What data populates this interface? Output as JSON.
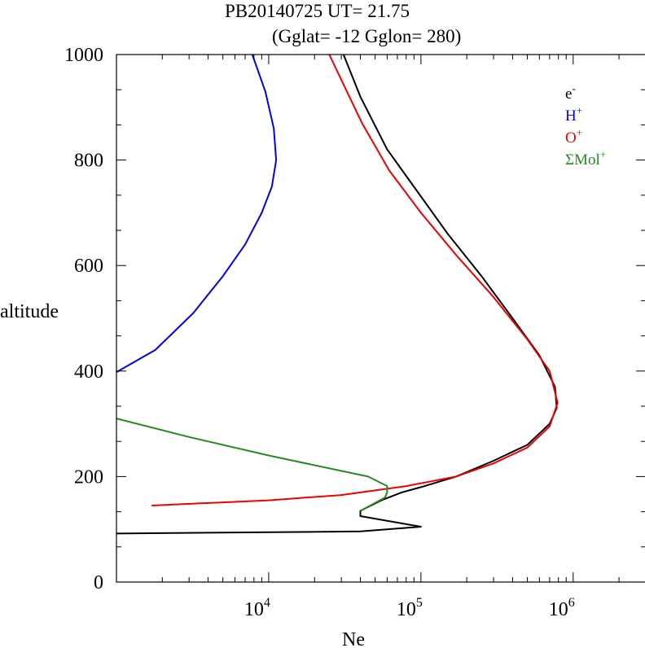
{
  "chart_data": {
    "type": "line",
    "title": "PB20140725   UT=  21.75",
    "subtitle": "(Gglat= -12   Gglon=  280)",
    "xlabel": "Ne",
    "ylabel": "altitude",
    "xscale": "log",
    "xlim": [
      1000,
      3000000
    ],
    "ylim": [
      0,
      1000
    ],
    "xticks": [
      {
        "value": 10000,
        "base": "10",
        "exp": "4"
      },
      {
        "value": 100000,
        "base": "10",
        "exp": "5"
      },
      {
        "value": 1000000,
        "base": "10",
        "exp": "6"
      }
    ],
    "yticks": [
      "0",
      "200",
      "400",
      "600",
      "800",
      "1000"
    ],
    "grid": false,
    "legend_position": "top-right",
    "series": [
      {
        "name": "e",
        "sup": "-",
        "color": "#000000",
        "points": [
          [
            1000,
            92
          ],
          [
            40000,
            96
          ],
          [
            100000,
            105
          ],
          [
            40000,
            125
          ],
          [
            40000,
            135
          ],
          [
            55000,
            155
          ],
          [
            75000,
            170
          ],
          [
            100000,
            180
          ],
          [
            170000,
            200
          ],
          [
            300000,
            230
          ],
          [
            500000,
            260
          ],
          [
            700000,
            300
          ],
          [
            780000,
            330
          ],
          [
            760000,
            370
          ],
          [
            600000,
            430
          ],
          [
            400000,
            500
          ],
          [
            250000,
            580
          ],
          [
            150000,
            660
          ],
          [
            95000,
            740
          ],
          [
            60000,
            820
          ],
          [
            40000,
            920
          ],
          [
            31000,
            1000
          ]
        ]
      },
      {
        "name": "H",
        "sup": "+",
        "color": "#0000ee",
        "points": [
          [
            1000,
            398
          ],
          [
            1800,
            440
          ],
          [
            3200,
            510
          ],
          [
            5000,
            580
          ],
          [
            7000,
            640
          ],
          [
            9000,
            700
          ],
          [
            10500,
            750
          ],
          [
            11200,
            800
          ],
          [
            10800,
            860
          ],
          [
            9500,
            930
          ],
          [
            7800,
            1000
          ]
        ]
      },
      {
        "name": "O",
        "sup": "+",
        "color": "#ee0000",
        "points": [
          [
            1700,
            145
          ],
          [
            10000,
            155
          ],
          [
            30000,
            165
          ],
          [
            80000,
            182
          ],
          [
            170000,
            200
          ],
          [
            300000,
            225
          ],
          [
            500000,
            255
          ],
          [
            700000,
            295
          ],
          [
            790000,
            340
          ],
          [
            700000,
            400
          ],
          [
            500000,
            460
          ],
          [
            300000,
            540
          ],
          [
            170000,
            620
          ],
          [
            100000,
            700
          ],
          [
            62000,
            780
          ],
          [
            41000,
            870
          ],
          [
            25000,
            1000
          ]
        ]
      },
      {
        "name": "ΣMol",
        "sup": "+",
        "color": "#228b22",
        "points": [
          [
            40000,
            135
          ],
          [
            50000,
            150
          ],
          [
            58000,
            160
          ],
          [
            60000,
            170
          ],
          [
            60000,
            182
          ],
          [
            45000,
            200
          ],
          [
            10000,
            240
          ],
          [
            3000,
            275
          ],
          [
            1000,
            310
          ]
        ]
      }
    ]
  }
}
